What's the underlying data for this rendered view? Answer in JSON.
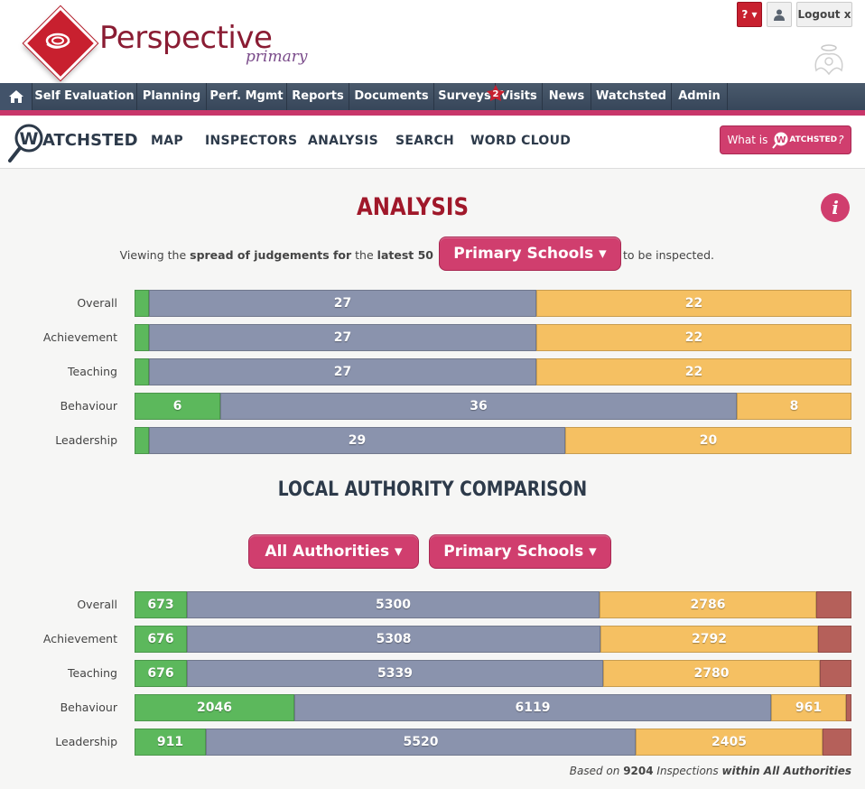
{
  "header": {
    "brand": "Perspective",
    "brand_sub": "primary",
    "help_label": "? ▾",
    "logout_label": "Logout x"
  },
  "main_nav": {
    "items": [
      {
        "label": "Self Evaluation"
      },
      {
        "label": "Planning"
      },
      {
        "label": "Perf. Mgmt"
      },
      {
        "label": "Reports"
      },
      {
        "label": "Documents"
      },
      {
        "label": "Surveys",
        "badge": "2"
      },
      {
        "label": "Visits"
      },
      {
        "label": "News"
      },
      {
        "label": "Watchsted"
      },
      {
        "label": "Admin"
      }
    ]
  },
  "sub_nav": {
    "brand": "ATCHSTED",
    "items": [
      "MAP",
      "INSPECTORS",
      "ANALYSIS",
      "SEARCH",
      "WORD CLOUD"
    ],
    "what_is_label": "What is",
    "what_is_brand": "ATCHSTED",
    "what_is_suffix": "?"
  },
  "analysis": {
    "title": "ANALYSIS",
    "viewing_prefix": "Viewing the ",
    "viewing_bold1": "spread of judgements for",
    "viewing_mid": " the ",
    "viewing_bold2": "latest 50",
    "school_type": "Primary Schools ▾",
    "viewing_suffix": "to be inspected."
  },
  "analysis_chart": {
    "total": 50,
    "rows": [
      {
        "label": "Overall",
        "outstanding": 1,
        "good": 27,
        "requires_improvement": 22,
        "inadequate": 0,
        "shown": {
          "good": "27",
          "requires_improvement": "22"
        }
      },
      {
        "label": "Achievement",
        "outstanding": 1,
        "good": 27,
        "requires_improvement": 22,
        "inadequate": 0,
        "shown": {
          "good": "27",
          "requires_improvement": "22"
        }
      },
      {
        "label": "Teaching",
        "outstanding": 1,
        "good": 27,
        "requires_improvement": 22,
        "inadequate": 0,
        "shown": {
          "good": "27",
          "requires_improvement": "22"
        }
      },
      {
        "label": "Behaviour",
        "outstanding": 6,
        "good": 36,
        "requires_improvement": 8,
        "inadequate": 0,
        "shown": {
          "outstanding": "6",
          "good": "36",
          "requires_improvement": "8"
        }
      },
      {
        "label": "Leadership",
        "outstanding": 1,
        "good": 29,
        "requires_improvement": 20,
        "inadequate": 0,
        "shown": {
          "good": "29",
          "requires_improvement": "20"
        }
      }
    ]
  },
  "la_comparison": {
    "title": "LOCAL AUTHORITY COMPARISON",
    "authority_filter": "All Authorities ▾",
    "school_filter": "Primary Schools ▾"
  },
  "la_chart": {
    "total": 9204,
    "rows": [
      {
        "label": "Overall",
        "outstanding": 673,
        "good": 5300,
        "requires_improvement": 2786,
        "inadequate": 445,
        "shown": {
          "outstanding": "673",
          "good": "5300",
          "requires_improvement": "2786"
        }
      },
      {
        "label": "Achievement",
        "outstanding": 676,
        "good": 5308,
        "requires_improvement": 2792,
        "inadequate": 428,
        "shown": {
          "outstanding": "676",
          "good": "5308",
          "requires_improvement": "2792"
        }
      },
      {
        "label": "Teaching",
        "outstanding": 676,
        "good": 5339,
        "requires_improvement": 2780,
        "inadequate": 409,
        "shown": {
          "outstanding": "676",
          "good": "5339",
          "requires_improvement": "2780"
        }
      },
      {
        "label": "Behaviour",
        "outstanding": 2046,
        "good": 6119,
        "requires_improvement": 961,
        "inadequate": 78,
        "shown": {
          "outstanding": "2046",
          "good": "6119",
          "requires_improvement": "961"
        }
      },
      {
        "label": "Leadership",
        "outstanding": 911,
        "good": 5520,
        "requires_improvement": 2405,
        "inadequate": 368,
        "shown": {
          "outstanding": "911",
          "good": "5520",
          "requires_improvement": "2405"
        }
      }
    ]
  },
  "footer": {
    "prefix": "Based on ",
    "count": "9204",
    "middle": " Inspections ",
    "suffix": "within All Authorities"
  },
  "colors": {
    "outstanding": "#5cb85c",
    "good": "#8a93ad",
    "requires_improvement": "#f5c062",
    "inadequate": "#b5605a",
    "accent": "#d03e6e",
    "brand_red": "#c8202f"
  }
}
